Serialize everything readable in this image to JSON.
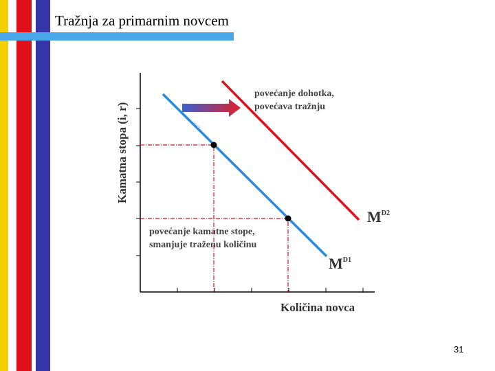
{
  "slide": {
    "title": "Tražnja za primarnim novcem",
    "page_number": "31"
  },
  "diagram": {
    "y_axis_label": "Kamatna stopa (i, r)",
    "x_axis_label": "Količina novca",
    "income_note": [
      "povećanje dohotka,",
      "povećava tražnju"
    ],
    "rate_note": [
      "povećanje kamatne stope,",
      "smanjuje traženu količinu"
    ],
    "curve_1": {
      "main": "M",
      "sup": "D1"
    },
    "curve_2": {
      "main": "M",
      "sup": "D2"
    }
  }
}
